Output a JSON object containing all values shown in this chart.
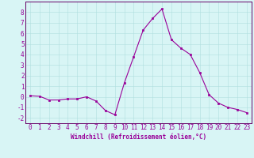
{
  "x": [
    0,
    1,
    2,
    3,
    4,
    5,
    6,
    7,
    8,
    9,
    10,
    11,
    12,
    13,
    14,
    15,
    16,
    17,
    18,
    19,
    20,
    21,
    22,
    23
  ],
  "y": [
    0.1,
    0.05,
    -0.3,
    -0.3,
    -0.2,
    -0.2,
    0.0,
    -0.4,
    -1.3,
    -1.7,
    1.3,
    3.8,
    6.3,
    7.4,
    8.3,
    5.4,
    4.6,
    4.0,
    2.3,
    0.2,
    -0.6,
    -1.0,
    -1.2,
    -1.5
  ],
  "line_color": "#990099",
  "marker": "s",
  "markersize": 1.8,
  "linewidth": 0.8,
  "background_color": "#d8f5f5",
  "grid_color": "#b0dede",
  "axis_color": "#660066",
  "tick_color": "#990099",
  "xlabel": "Windchill (Refroidissement éolien,°C)",
  "ylabel": "",
  "xlim": [
    -0.5,
    23.5
  ],
  "ylim": [
    -2.5,
    9.0
  ],
  "yticks": [
    -2,
    -1,
    0,
    1,
    2,
    3,
    4,
    5,
    6,
    7,
    8
  ],
  "xticks": [
    0,
    1,
    2,
    3,
    4,
    5,
    6,
    7,
    8,
    9,
    10,
    11,
    12,
    13,
    14,
    15,
    16,
    17,
    18,
    19,
    20,
    21,
    22,
    23
  ],
  "label_fontsize": 5.5,
  "tick_fontsize": 5.5
}
